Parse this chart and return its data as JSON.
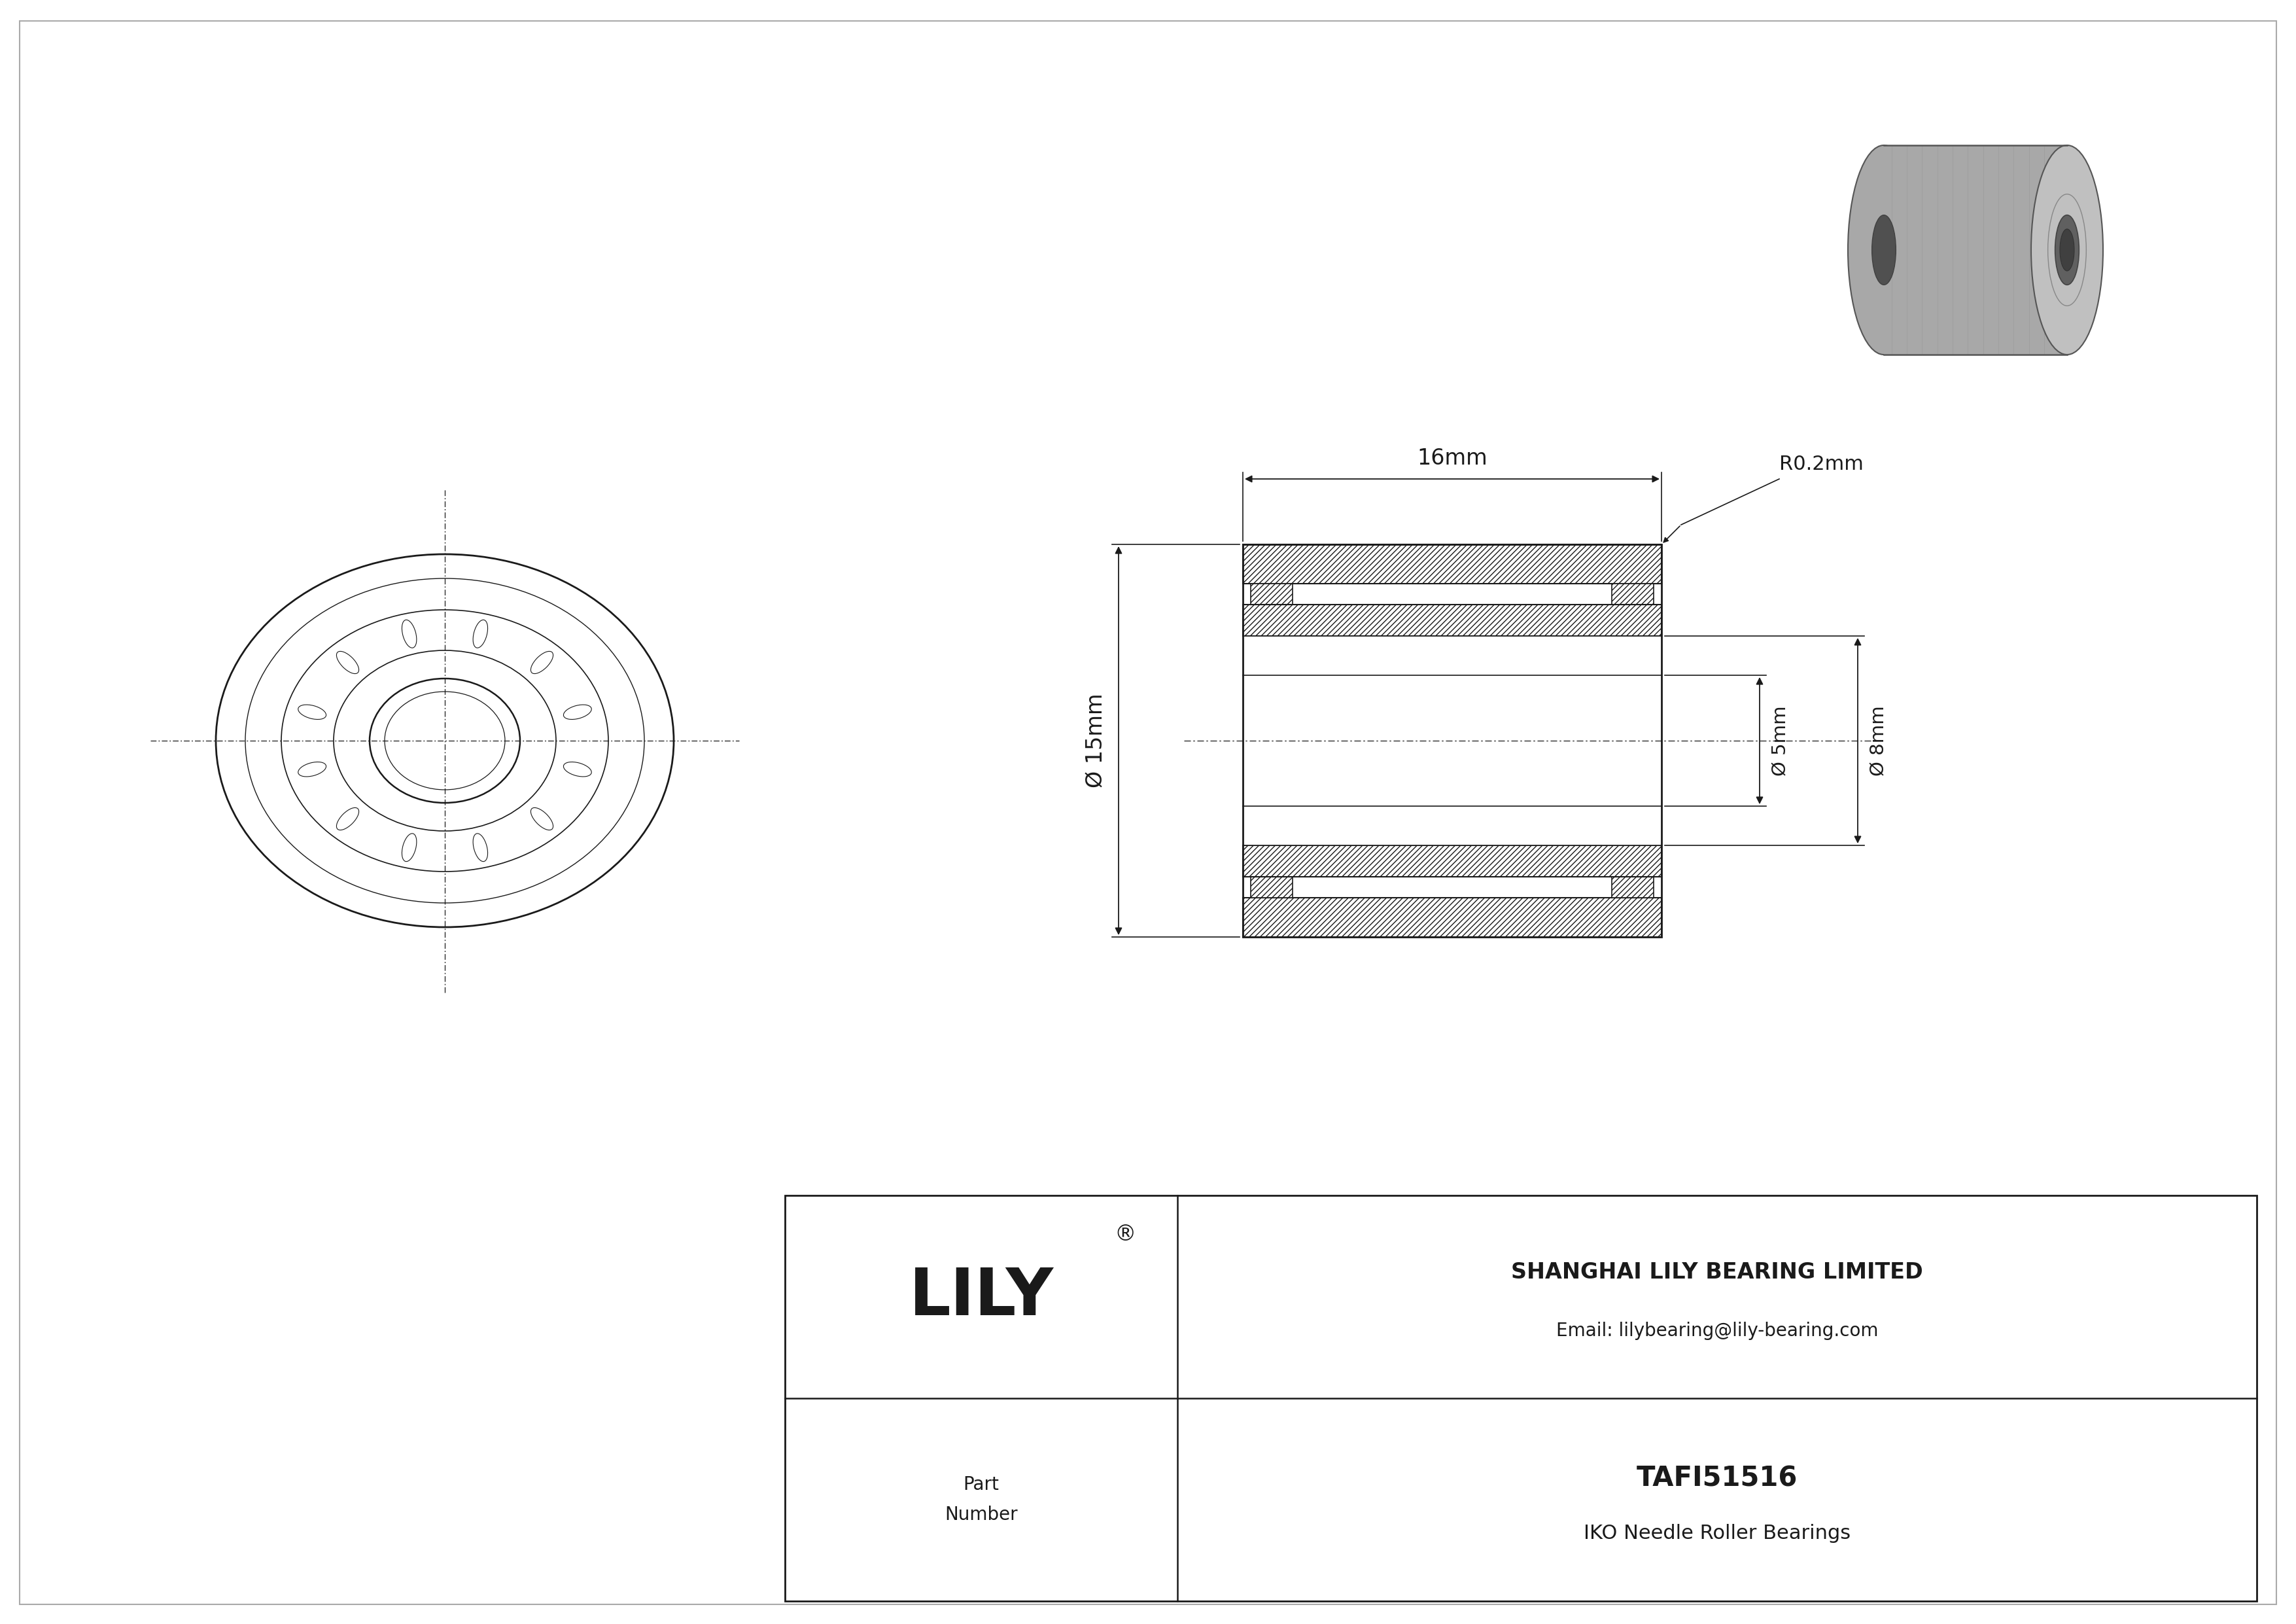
{
  "line_color": "#1a1a1a",
  "company": "SHANGHAI LILY BEARING LIMITED",
  "email": "Email: lilybearing@lily-bearing.com",
  "part_number": "TAFI51516",
  "bearing_type": "IKO Needle Roller Bearings",
  "part_label": "Part\nNumber",
  "dim_width": "16mm",
  "dim_od": "Ø 15mm",
  "dim_id": "Ø 5mm",
  "dim_flange_od": "Ø 8mm",
  "dim_radius": "R0.2mm",
  "gray_3d": "#999999",
  "gray_dark": "#808080",
  "gray_light": "#c0c0c0",
  "gray_mid": "#a8a8a8",
  "edge_color": "#555555"
}
